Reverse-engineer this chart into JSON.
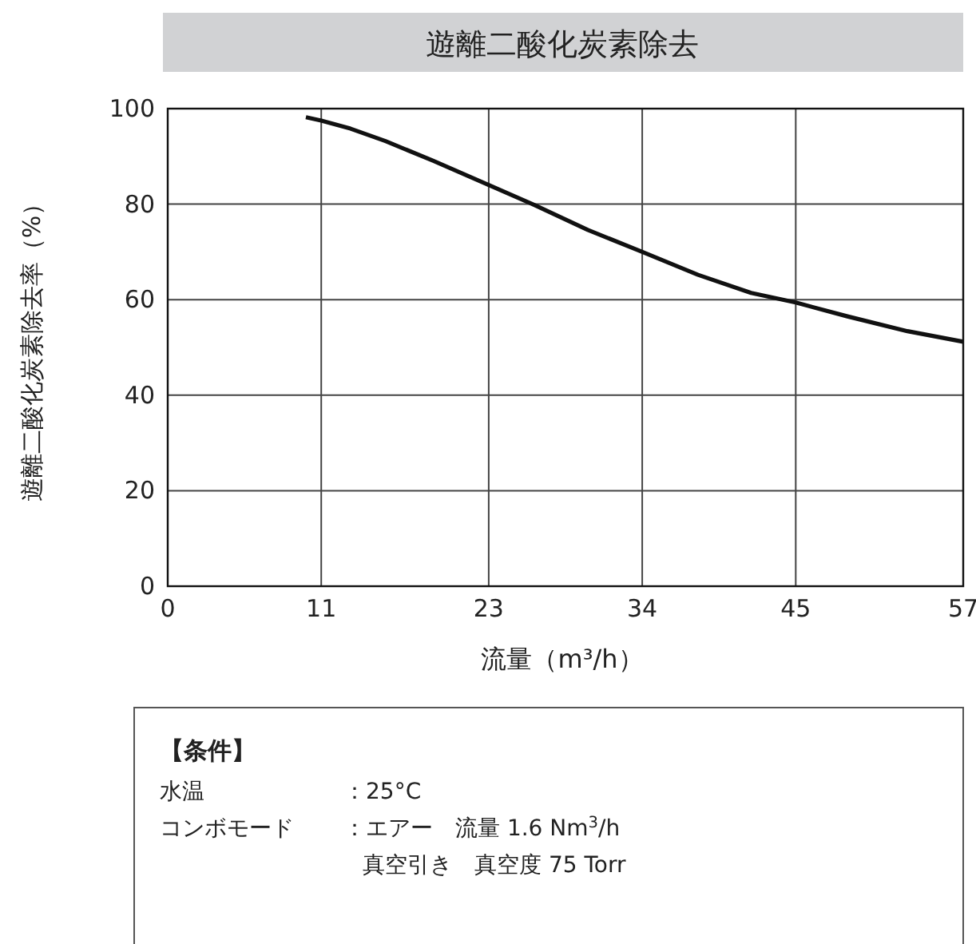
{
  "chart_data": {
    "type": "line",
    "title": "遊離二酸化炭素除去",
    "xlabel": "流量（m³/h）",
    "ylabel": "遊離二酸化炭素除去率（%）",
    "x": [
      9.9,
      11,
      13.1,
      15.6,
      19.0,
      23,
      26.3,
      30.1,
      34,
      38.0,
      41.8,
      45,
      48.7,
      53.0,
      57
    ],
    "series": [
      {
        "color": "#111111",
        "values": [
          98.2,
          97.5,
          95.8,
          93.2,
          89.1,
          84.0,
          79.8,
          74.6,
          70.0,
          65.2,
          61.4,
          59.4,
          56.5,
          53.4,
          51.2
        ]
      }
    ],
    "xlim": [
      0,
      57
    ],
    "xticks": [
      0,
      11,
      23,
      34,
      45,
      57
    ],
    "ylim": [
      0,
      100
    ],
    "yticks": [
      0,
      20,
      40,
      60,
      80,
      100
    ],
    "grid": true,
    "marker": "none",
    "line_style": "solid",
    "annotations": [
      "【条件】",
      "水温",
      "：25°C",
      "コンボモード",
      "：エアー　流量 1.6 Nm$^{3}$/h",
      "真空引き　真空度 75 Torr"
    ]
  }
}
